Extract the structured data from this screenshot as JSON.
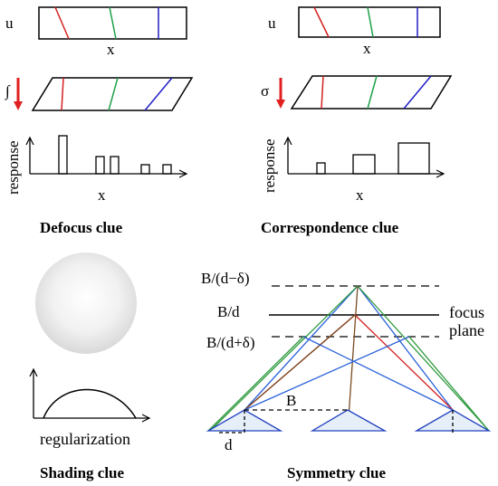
{
  "defocus": {
    "u_label": "u",
    "x_label_top": "x",
    "integral_label": "∫",
    "response_label": "response",
    "x_label_bottom": "x",
    "title": "Defocus clue"
  },
  "correspondence": {
    "u_label": "u",
    "x_label_top": "x",
    "sigma_label": "σ",
    "response_label": "response",
    "x_label_bottom": "x",
    "title": "Correspondence  clue"
  },
  "shading": {
    "regularization_label": "regularization",
    "title": "Shading clue"
  },
  "symmetry": {
    "label_top": "B/(d−δ)",
    "label_mid": "B/d",
    "label_bottom": "B/(d+δ)",
    "focus_label": "focus",
    "plane_label": "plane",
    "b_label": "B",
    "d_label": "d",
    "title": "Symmetry clue"
  },
  "colors": {
    "red": "#d42020",
    "green": "#1fa04a",
    "blue": "#1f1fc8",
    "brown": "#7a4a20",
    "arrow_red": "#e02020",
    "triangle_blue": "#2040c0"
  }
}
